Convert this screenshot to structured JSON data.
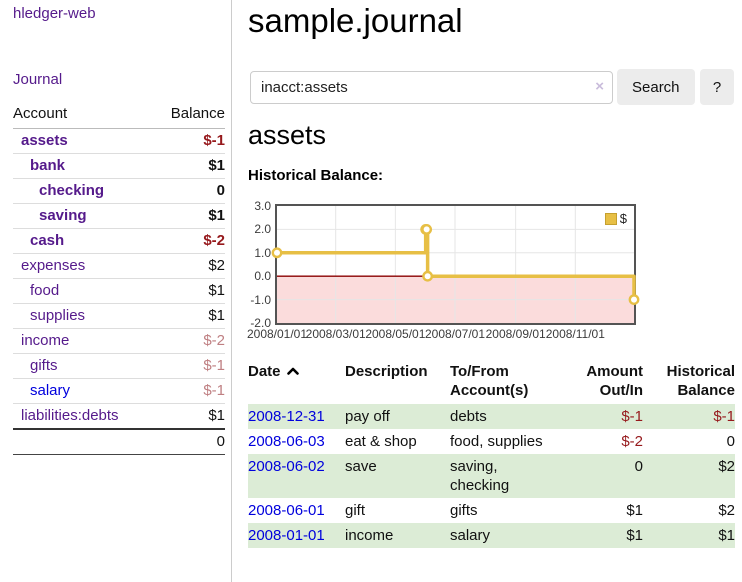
{
  "sidebar": {
    "brand": "hledger-web",
    "journal_link": "Journal",
    "table": {
      "header": {
        "account": "Account",
        "balance": "Balance"
      },
      "rows": [
        {
          "name": "assets",
          "balance": "$-1"
        },
        {
          "name": "bank",
          "balance": "$1"
        },
        {
          "name": "checking",
          "balance": "0"
        },
        {
          "name": "saving",
          "balance": "$1"
        },
        {
          "name": "cash",
          "balance": "$-2"
        },
        {
          "name": "expenses",
          "balance": "$2"
        },
        {
          "name": "food",
          "balance": "$1"
        },
        {
          "name": "supplies",
          "balance": "$1"
        },
        {
          "name": "income",
          "balance": "$-2"
        },
        {
          "name": "gifts",
          "balance": "$-1"
        },
        {
          "name": "salary",
          "balance": "$-1"
        },
        {
          "name": "liabilities:debts",
          "balance": "$1"
        }
      ],
      "total": "0"
    }
  },
  "header": {
    "title": "sample.journal"
  },
  "search": {
    "value": "inacct:assets",
    "clear_icon": "×",
    "button_label": "Search",
    "help_label": "?"
  },
  "account_page": {
    "heading": "assets",
    "chart_label": "Historical Balance:"
  },
  "chart_data": {
    "type": "line",
    "title": "Historical Balance",
    "legend": "$",
    "legend_position": "top-right",
    "grid": true,
    "ylim": [
      -2,
      3
    ],
    "y_ticks": [
      3.0,
      2.0,
      1.0,
      0.0,
      -1.0,
      -2.0
    ],
    "xlim_days": [
      0,
      365
    ],
    "x_ticks": [
      {
        "label": "2008/01/01",
        "day": 0
      },
      {
        "label": "2008/03/01",
        "day": 60
      },
      {
        "label": "2008/05/01",
        "day": 121
      },
      {
        "label": "2008/07/01",
        "day": 182
      },
      {
        "label": "2008/09/01",
        "day": 244
      },
      {
        "label": "2008/11/01",
        "day": 305
      }
    ],
    "series": [
      {
        "name": "$",
        "color": "#e7bf45",
        "steps": true,
        "points": [
          {
            "date": "2008-01-01",
            "day": 0,
            "value": 1
          },
          {
            "date": "2008-06-01",
            "day": 152,
            "value": 2
          },
          {
            "date": "2008-06-02",
            "day": 153,
            "value": 2
          },
          {
            "date": "2008-06-03",
            "day": 154,
            "value": 0
          },
          {
            "date": "2008-12-31",
            "day": 365,
            "value": -1
          }
        ]
      }
    ],
    "negative_region_color": "#fbdcdc",
    "zero_line_color": "#8b0000",
    "grid_color": "#e6e6e6"
  },
  "register": {
    "columns": {
      "date": "Date",
      "description": "Description",
      "accounts": "To/From\nAccount(s)",
      "amount": "Amount\nOut/In",
      "balance": "Historical\nBalance"
    },
    "rows": [
      {
        "date": "2008-12-31",
        "description": "pay off",
        "accounts": "debts",
        "amount": "$-1",
        "balance": "$-1"
      },
      {
        "date": "2008-06-03",
        "description": "eat & shop",
        "accounts": "food, supplies",
        "amount": "$-2",
        "balance": "0"
      },
      {
        "date": "2008-06-02",
        "description": "save",
        "accounts": "saving,\nchecking",
        "amount": "0",
        "balance": "$2"
      },
      {
        "date": "2008-06-01",
        "description": "gift",
        "accounts": "gifts",
        "amount": "$1",
        "balance": "$2"
      },
      {
        "date": "2008-01-01",
        "description": "income",
        "accounts": "salary",
        "amount": "$1",
        "balance": "$1"
      }
    ]
  },
  "colors": {
    "link_purple": "#551a8b",
    "link_blue": "#0000dd",
    "negative_strong": "#96191c",
    "negative_muted": "#bf7f82",
    "row_stripe_green": "#dcecd6",
    "chart_line_gold": "#e7bf45",
    "chart_negative_bg": "#fbdcdc",
    "chart_zero_line": "#8b0000"
  }
}
